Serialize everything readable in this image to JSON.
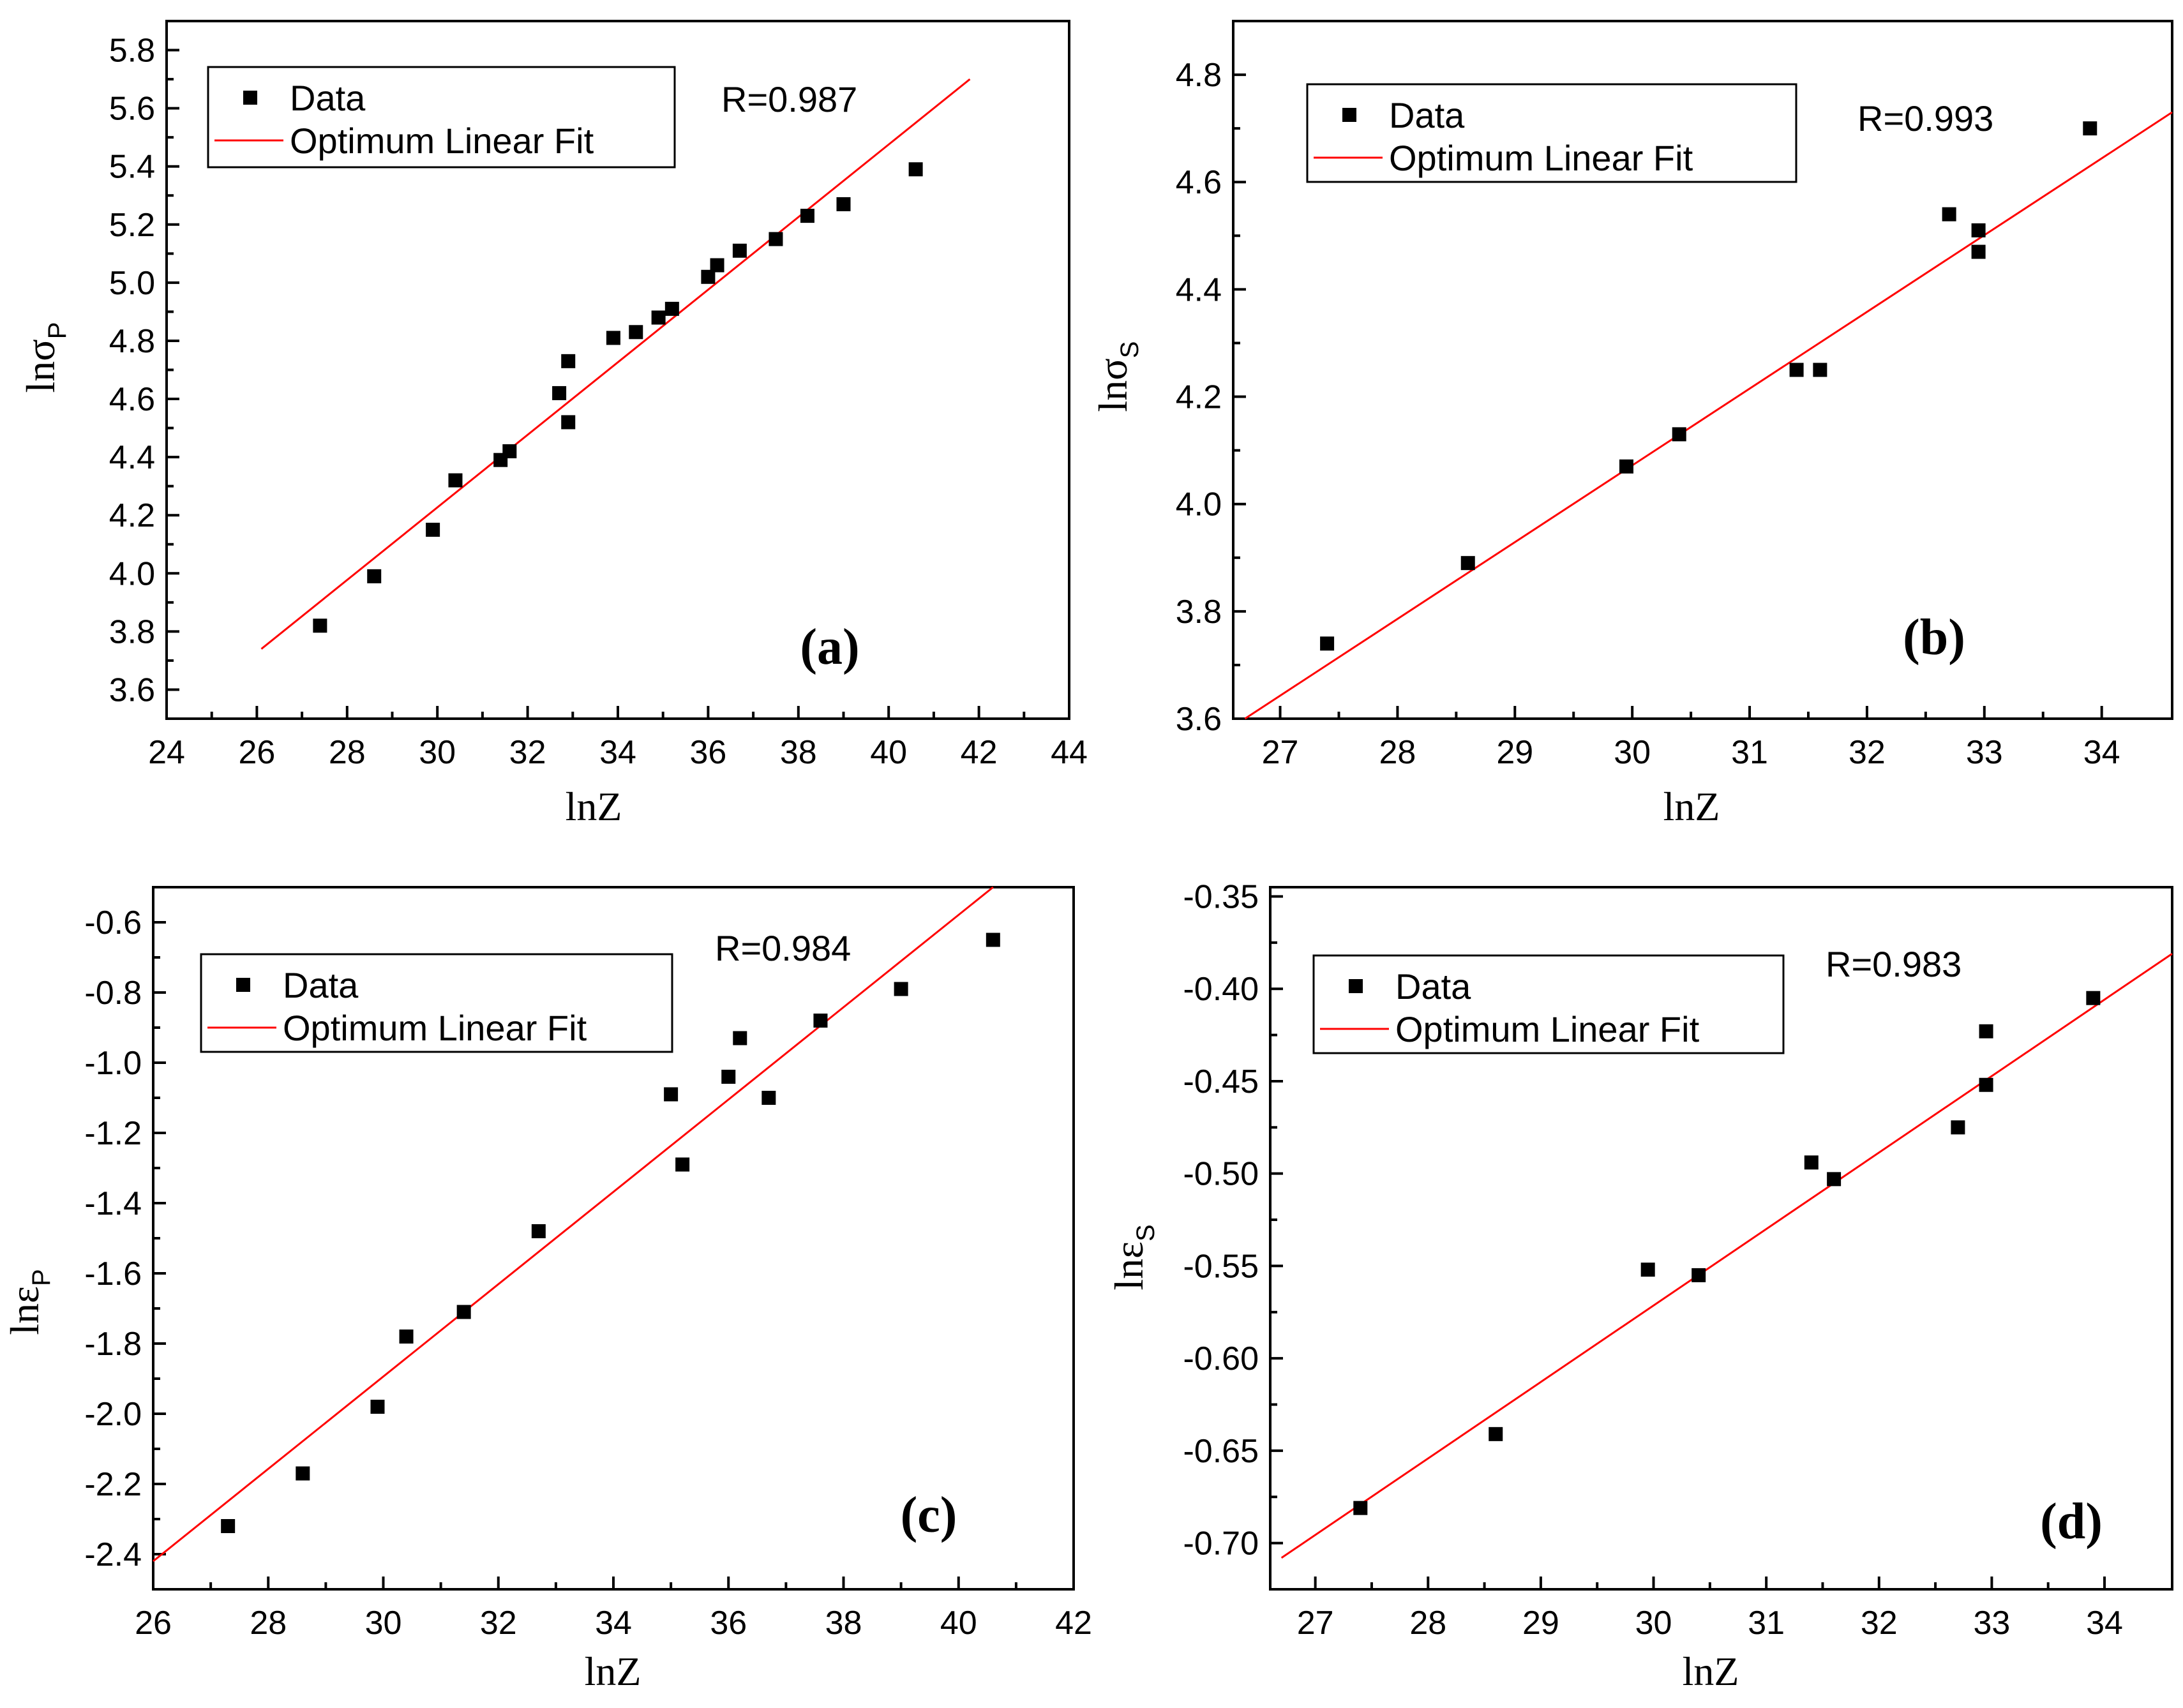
{
  "chart_data": [
    {
      "panel": "(a)",
      "type": "scatter",
      "xlabel": "lnZ",
      "ylabel_main": "lnσ",
      "ylabel_sub": "P",
      "xlim": [
        24,
        44
      ],
      "ylim": [
        3.5,
        5.9
      ],
      "xticks": [
        "24",
        "26",
        "28",
        "30",
        "32",
        "34",
        "36",
        "38",
        "40",
        "42",
        "44"
      ],
      "yticks": [
        "3.6",
        "3.8",
        "4.0",
        "4.2",
        "4.4",
        "4.6",
        "4.8",
        "5.0",
        "5.2",
        "5.4",
        "5.6",
        "5.8"
      ],
      "legend": [
        "Data",
        "Optimum Linear Fit"
      ],
      "r_text": "R=0.987",
      "x": [
        27.4,
        28.6,
        29.9,
        30.4,
        31.4,
        31.6,
        32.7,
        32.9,
        32.9,
        33.9,
        34.4,
        34.9,
        35.2,
        36.0,
        36.2,
        36.7,
        37.5,
        38.2,
        39.0,
        40.6
      ],
      "y": [
        3.82,
        3.99,
        4.15,
        4.32,
        4.39,
        4.42,
        4.62,
        4.73,
        4.52,
        4.81,
        4.83,
        4.88,
        4.91,
        5.02,
        5.06,
        5.11,
        5.15,
        5.23,
        5.27,
        5.39
      ],
      "fit": {
        "x": [
          26.1,
          41.8
        ],
        "y": [
          3.74,
          5.7
        ]
      }
    },
    {
      "panel": "(b)",
      "type": "scatter",
      "xlabel": "lnZ",
      "ylabel_main": "lnσ",
      "ylabel_sub": "S",
      "xlim": [
        26.6,
        34.6
      ],
      "ylim": [
        3.6,
        4.9
      ],
      "xticks": [
        "27",
        "28",
        "29",
        "30",
        "31",
        "32",
        "33",
        "34"
      ],
      "yticks": [
        "3.6",
        "3.8",
        "4.0",
        "4.2",
        "4.4",
        "4.6",
        "4.8"
      ],
      "legend": [
        "Data",
        "Optimum Linear Fit"
      ],
      "r_text": "R=0.993",
      "x": [
        27.4,
        28.6,
        29.95,
        30.4,
        31.4,
        31.6,
        32.7,
        32.95,
        32.95,
        33.9
      ],
      "y": [
        3.74,
        3.89,
        4.07,
        4.13,
        4.25,
        4.25,
        4.54,
        4.51,
        4.47,
        4.7
      ],
      "fit": {
        "x": [
          26.7,
          34.6
        ],
        "y": [
          3.6,
          4.73
        ]
      }
    },
    {
      "panel": "(c)",
      "type": "scatter",
      "xlabel": "lnZ",
      "ylabel_main": "lnε",
      "ylabel_sub": "P",
      "xlim": [
        26,
        42
      ],
      "ylim": [
        -2.5,
        -0.5
      ],
      "xticks": [
        "26",
        "28",
        "30",
        "32",
        "34",
        "36",
        "38",
        "40",
        "42"
      ],
      "yticks": [
        "-2.4",
        "-2.2",
        "-2.0",
        "-1.8",
        "-1.6",
        "-1.4",
        "-1.2",
        "-1.0",
        "-0.8",
        "-0.6"
      ],
      "legend": [
        "Data",
        "Optimum Linear Fit"
      ],
      "r_text": "R=0.984",
      "x": [
        27.3,
        28.6,
        29.9,
        30.4,
        31.4,
        32.7,
        35.0,
        35.2,
        36.0,
        36.2,
        36.7,
        37.6,
        39.0,
        40.6
      ],
      "y": [
        -2.32,
        -2.17,
        -1.98,
        -1.78,
        -1.71,
        -1.48,
        -1.09,
        -1.29,
        -1.04,
        -0.93,
        -1.1,
        -0.88,
        -0.79,
        -0.65
      ],
      "fit": {
        "x": [
          26.0,
          40.6
        ],
        "y": [
          -2.42,
          -0.5
        ]
      }
    },
    {
      "panel": "(d)",
      "type": "scatter",
      "xlabel": "lnZ",
      "ylabel_main": "lnε",
      "ylabel_sub": "S",
      "xlim": [
        26.6,
        34.6
      ],
      "ylim": [
        -0.725,
        -0.345
      ],
      "xticks": [
        "27",
        "28",
        "29",
        "30",
        "31",
        "32",
        "33",
        "34"
      ],
      "yticks": [
        "-0.70",
        "-0.65",
        "-0.60",
        "-0.55",
        "-0.50",
        "-0.45",
        "-0.40",
        "-0.35"
      ],
      "legend": [
        "Data",
        "Optimum Linear Fit"
      ],
      "r_text": "R=0.983",
      "x": [
        27.4,
        28.6,
        29.95,
        30.4,
        31.4,
        31.6,
        32.7,
        32.95,
        32.95,
        33.9
      ],
      "y": [
        -0.681,
        -0.641,
        -0.552,
        -0.555,
        -0.494,
        -0.503,
        -0.475,
        -0.452,
        -0.423,
        -0.405
      ],
      "fit": {
        "x": [
          26.7,
          34.6
        ],
        "y": [
          -0.708,
          -0.381
        ]
      }
    }
  ]
}
